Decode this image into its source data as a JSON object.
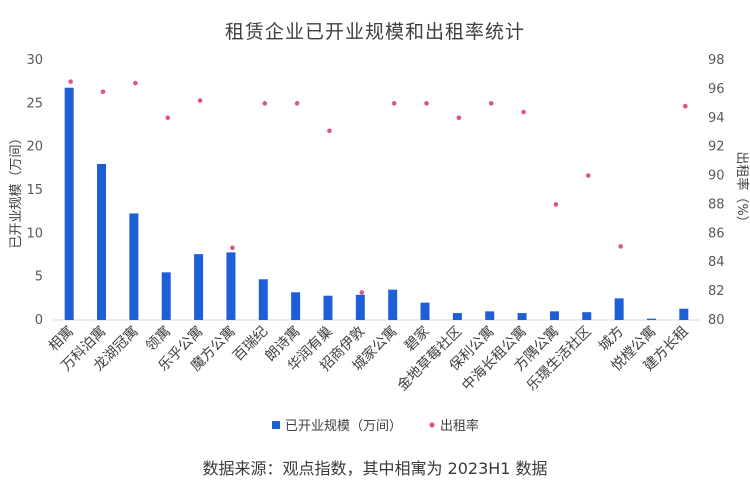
{
  "chart_data": {
    "type": "bar+scatter",
    "title": "租赁企业已开业规模和出租率统计",
    "categories": [
      "相寓",
      "万科泊寓",
      "龙湖冠寓",
      "领寓",
      "乐乎公寓",
      "魔方公寓",
      "百瑞纪",
      "朗诗寓",
      "华润有巢",
      "招商伊敦",
      "城家公寓",
      "碧家",
      "金地草莓社区",
      "保利公寓",
      "中海长租公寓",
      "方隅公寓",
      "乐璟生活社区",
      "城方",
      "悦樘公寓",
      "建方长租"
    ],
    "series": [
      {
        "name": "已开业规模（万间）",
        "kind": "bar",
        "axis": "left",
        "color": "#1f5fd6",
        "values": [
          26.8,
          18.0,
          12.3,
          5.5,
          7.6,
          7.8,
          4.7,
          3.2,
          2.8,
          2.9,
          3.5,
          2.0,
          0.8,
          1.0,
          0.8,
          1.0,
          0.9,
          2.5,
          0.15,
          1.3
        ]
      },
      {
        "name": "出租率",
        "kind": "scatter",
        "axis": "right",
        "color": "#e0528a",
        "values": [
          96.5,
          95.8,
          96.4,
          94.0,
          95.2,
          85.0,
          95.0,
          95.0,
          93.1,
          81.9,
          95.0,
          95.0,
          94.0,
          95.0,
          94.4,
          88.0,
          90.0,
          85.1,
          null,
          94.8
        ]
      }
    ],
    "y_left": {
      "label": "已开业规模（万间）",
      "min": 0,
      "max": 30,
      "ticks": [
        0,
        5,
        10,
        15,
        20,
        25,
        30
      ]
    },
    "y_right": {
      "label": "出租率（%）",
      "min": 80,
      "max": 98,
      "ticks": [
        80,
        82,
        84,
        86,
        88,
        90,
        92,
        94,
        96,
        98
      ]
    },
    "legend": {
      "position": "bottom",
      "entries": [
        "已开业规模（万间）",
        "出租率"
      ]
    }
  },
  "source_note": "数据来源：观点指数，其中相寓为 2023H1 数据"
}
